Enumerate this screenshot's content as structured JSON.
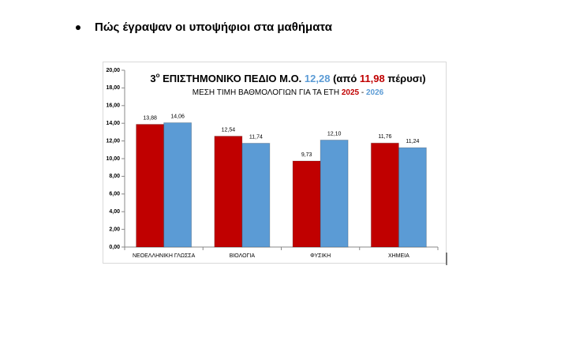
{
  "heading": "Πώς έγραψαν οι υποψήφιοι στα μαθήματα",
  "chart_data": {
    "type": "bar",
    "title": {
      "prefix": "3",
      "superscript": "ο",
      "text": " ΕΠΙΣΤΗΜΟΝΙΚΟ ΠΕΔΙΟ Μ.Ο. ",
      "current": "12,28",
      "middle": " (από ",
      "previous": "11,98",
      "suffix": " πέρυσι)"
    },
    "subtitle": {
      "text": "ΜΕΣΗ ΤΙΜΗ ΒΑΘΜΟΛΟΓΙΩΝ ΓΙΑ ΤΑ ΕΤΗ ",
      "separator": " - "
    },
    "categories": [
      "ΝΕΟΕΛΛΗΝΙΚΗ ΓΛΩΣΣΑ",
      "ΒΙΟΛΟΓΙΑ",
      "ΦΥΣΙΚΗ",
      "ΧΗΜΕΙΑ"
    ],
    "series": [
      {
        "name": "2025",
        "color": "#c00000",
        "values": [
          13.88,
          12.54,
          9.73,
          11.76
        ],
        "value_labels": [
          "13,88",
          "12,54",
          "9,73",
          "11,76"
        ]
      },
      {
        "name": "2026",
        "color": "#5b9bd5",
        "values": [
          14.06,
          11.74,
          12.1,
          11.24
        ],
        "value_labels": [
          "14,06",
          "11,74",
          "12,10",
          "11,24"
        ]
      }
    ],
    "ylim": [
      0,
      20
    ],
    "yticks": [
      {
        "value": 0,
        "label": "0,00"
      },
      {
        "value": 2,
        "label": "2,00"
      },
      {
        "value": 4,
        "label": "4,00"
      },
      {
        "value": 6,
        "label": "6,00"
      },
      {
        "value": 8,
        "label": "8,00"
      },
      {
        "value": 10,
        "label": "10,00"
      },
      {
        "value": 12,
        "label": "12,00"
      },
      {
        "value": 14,
        "label": "14,00"
      },
      {
        "value": 16,
        "label": "16,00"
      },
      {
        "value": 18,
        "label": "18,00"
      },
      {
        "value": 20,
        "label": "20,00"
      }
    ],
    "grid": false
  }
}
